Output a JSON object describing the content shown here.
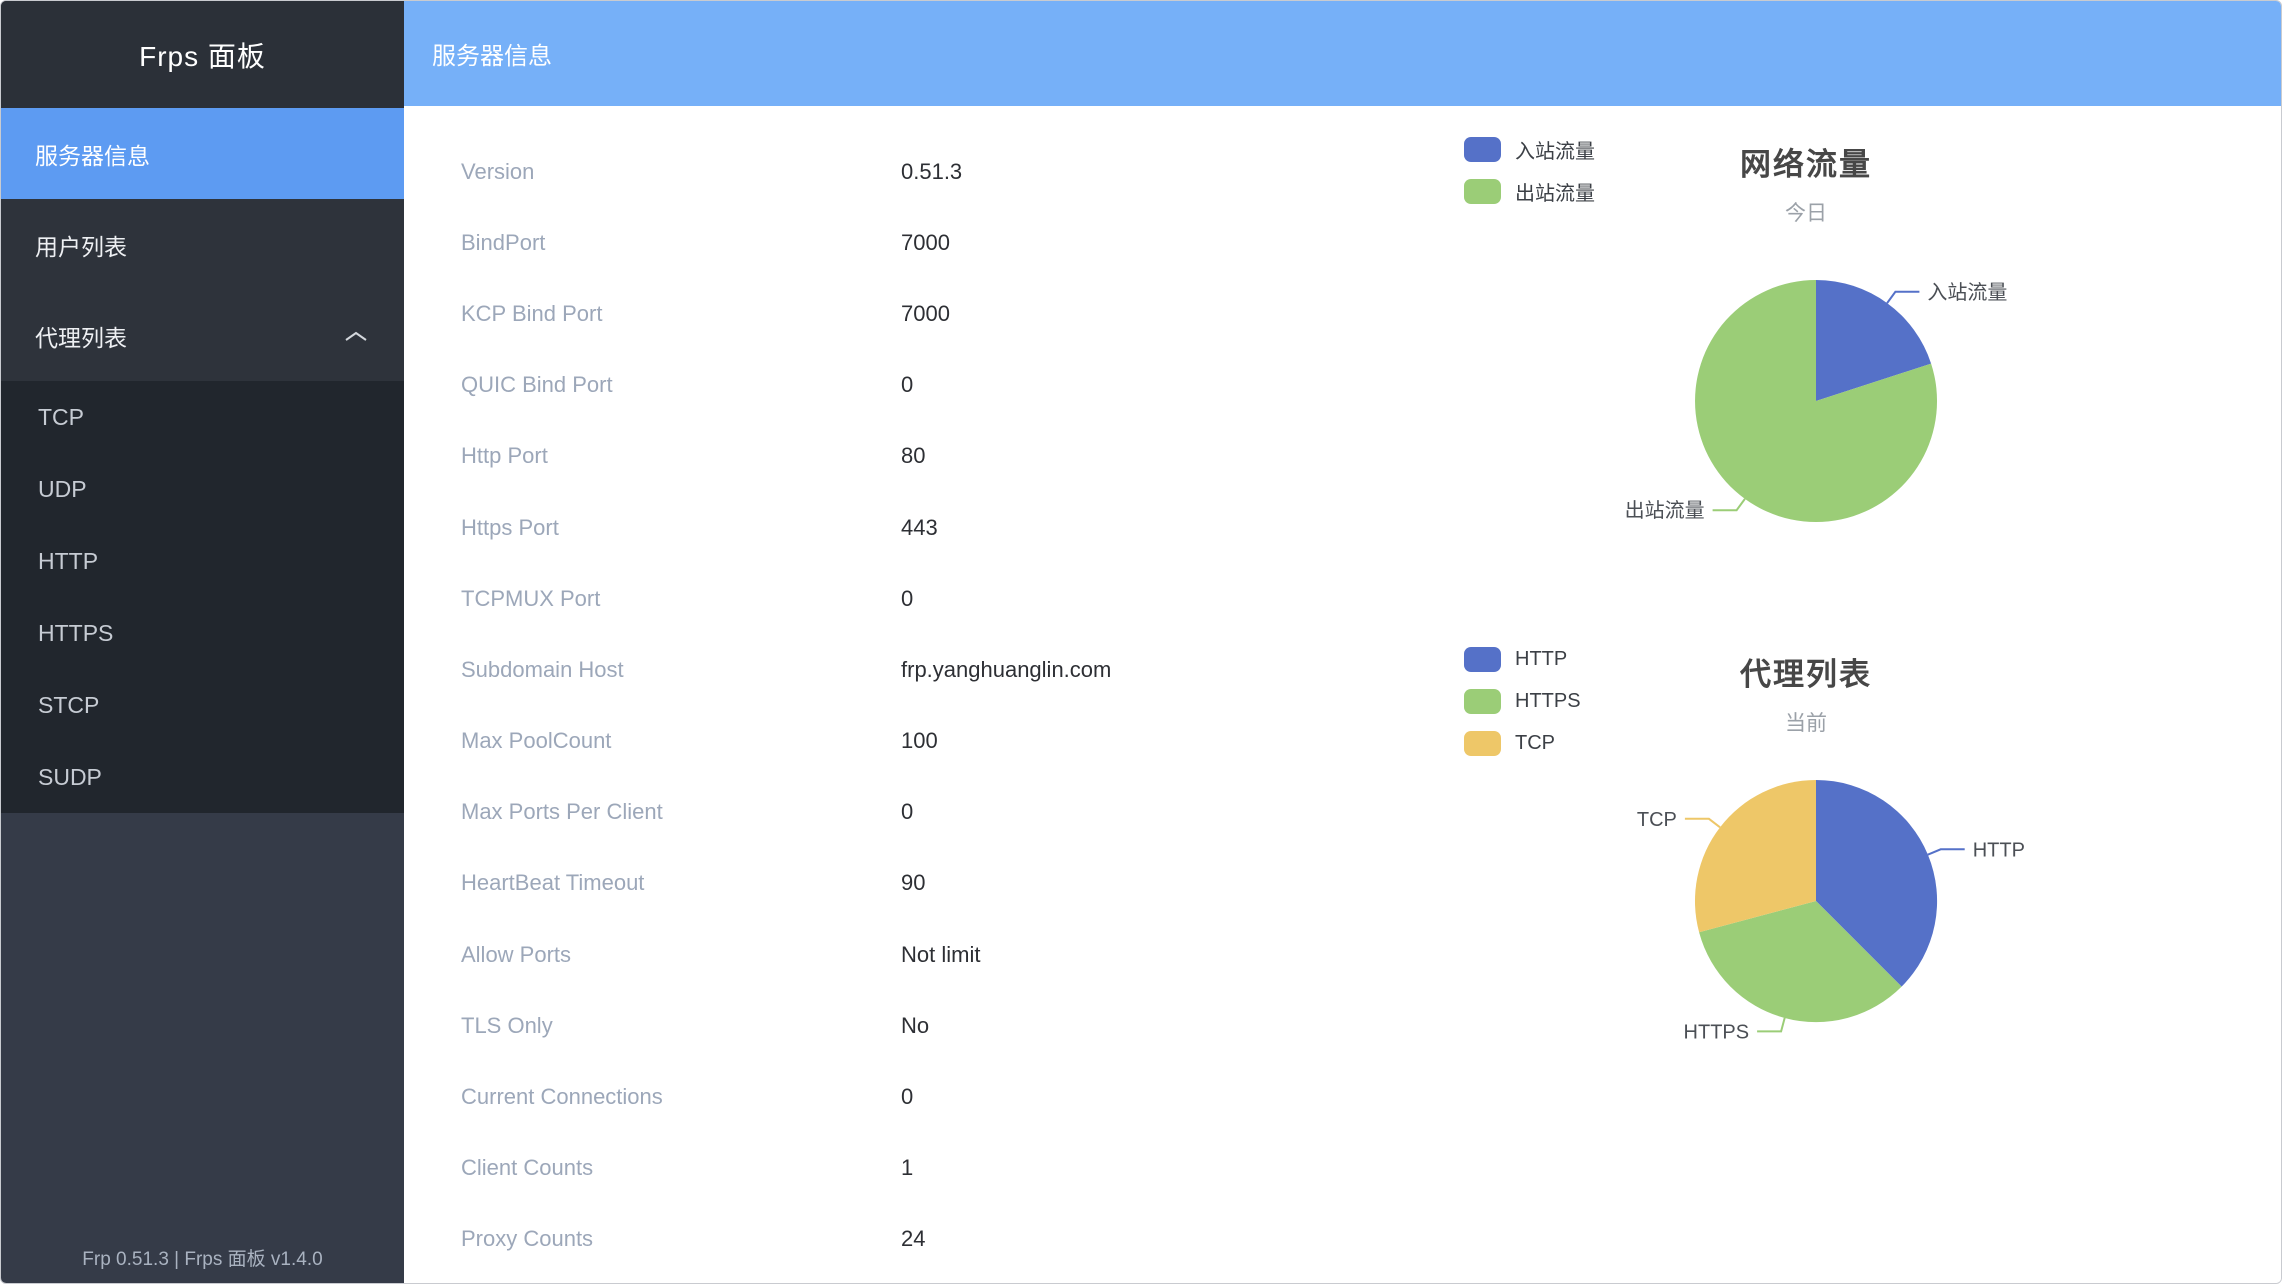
{
  "sidebar": {
    "title": "Frps 面板",
    "items": [
      {
        "id": "server-info",
        "label": "服务器信息",
        "active": true,
        "expanded": false
      },
      {
        "id": "user-list",
        "label": "用户列表",
        "active": false,
        "expanded": false
      },
      {
        "id": "proxy-list",
        "label": "代理列表",
        "active": false,
        "expanded": true
      }
    ],
    "subitems": [
      {
        "id": "tcp",
        "label": "TCP"
      },
      {
        "id": "udp",
        "label": "UDP"
      },
      {
        "id": "http",
        "label": "HTTP"
      },
      {
        "id": "https",
        "label": "HTTPS"
      },
      {
        "id": "stcp",
        "label": "STCP"
      },
      {
        "id": "sudp",
        "label": "SUDP"
      }
    ],
    "footer": "Frp 0.51.3 | Frps 面板 v1.4.0"
  },
  "header": {
    "title": "服务器信息"
  },
  "server_info": {
    "rows": [
      {
        "label": "Version",
        "value": "0.51.3"
      },
      {
        "label": "BindPort",
        "value": "7000"
      },
      {
        "label": "KCP Bind Port",
        "value": "7000"
      },
      {
        "label": "QUIC Bind Port",
        "value": "0"
      },
      {
        "label": "Http Port",
        "value": "80"
      },
      {
        "label": "Https Port",
        "value": "443"
      },
      {
        "label": "TCPMUX Port",
        "value": "0"
      },
      {
        "label": "Subdomain Host",
        "value": "frp.yanghuanglin.com"
      },
      {
        "label": "Max PoolCount",
        "value": "100"
      },
      {
        "label": "Max Ports Per Client",
        "value": "0"
      },
      {
        "label": "HeartBeat Timeout",
        "value": "90"
      },
      {
        "label": "Allow Ports",
        "value": "Not limit"
      },
      {
        "label": "TLS Only",
        "value": "No"
      },
      {
        "label": "Current Connections",
        "value": "0"
      },
      {
        "label": "Client Counts",
        "value": "1"
      },
      {
        "label": "Proxy Counts",
        "value": "24"
      }
    ]
  },
  "colors": {
    "sidebar_active_blue": "#5d9bf2",
    "header_blue": "#76b0f8",
    "pie_blue": "#5571c8",
    "pie_green": "#9bcd77",
    "pie_yellow": "#eec768",
    "pie_label_text": "#4b4f55"
  },
  "chart_data": [
    {
      "type": "pie",
      "title": "网络流量",
      "subtitle": "今日",
      "legend_position": "top-left",
      "unit": "percent",
      "series": [
        {
          "id": "inbound",
          "name": "入站流量",
          "value": 20,
          "color": "#5571c8"
        },
        {
          "id": "outbound",
          "name": "出站流量",
          "value": 80,
          "color": "#9bcd77"
        }
      ]
    },
    {
      "type": "pie",
      "title": "代理列表",
      "subtitle": "当前",
      "legend_position": "top-left",
      "unit": "proxies",
      "series": [
        {
          "id": "http",
          "name": "HTTP",
          "value": 9,
          "color": "#5571c8"
        },
        {
          "id": "https",
          "name": "HTTPS",
          "value": 8,
          "color": "#9bcd77"
        },
        {
          "id": "tcp",
          "name": "TCP",
          "value": 7,
          "color": "#eec768"
        }
      ]
    }
  ]
}
